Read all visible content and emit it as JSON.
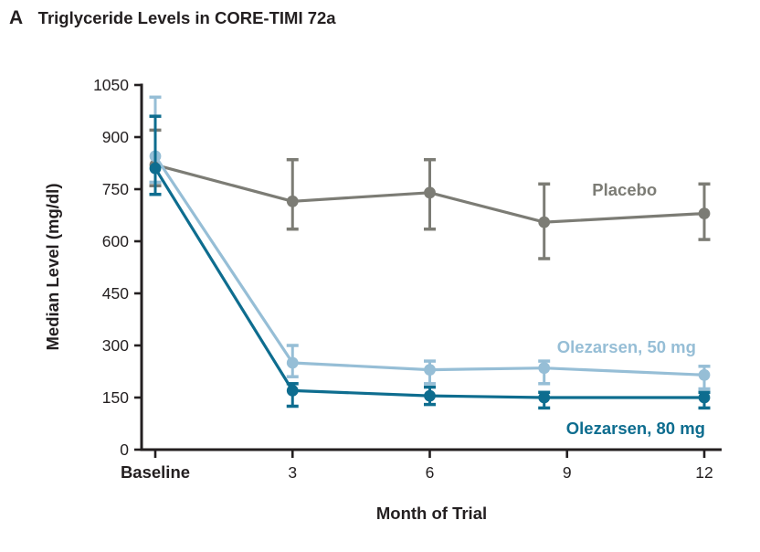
{
  "panel": {
    "label": "A",
    "title": "Triglyceride Levels in CORE-TIMI 72a"
  },
  "chart_data": {
    "type": "line",
    "title": "Triglyceride Levels in CORE-TIMI 72a",
    "xlabel": "Month of Trial",
    "ylabel": "Median Level (mg/dl)",
    "ylim": [
      0,
      1050
    ],
    "y_ticks": [
      0,
      150,
      300,
      450,
      600,
      750,
      900,
      1050
    ],
    "x_ticks": [
      {
        "pos": 0,
        "label": "Baseline",
        "bold": true
      },
      {
        "pos": 3,
        "label": "3",
        "bold": false
      },
      {
        "pos": 6,
        "label": "6",
        "bold": false
      },
      {
        "pos": 9,
        "label": "9",
        "bold": false
      },
      {
        "pos": 12,
        "label": "12",
        "bold": false
      }
    ],
    "x": [
      0,
      3,
      6,
      8.5,
      12
    ],
    "grid": false,
    "legend_position": "inline-labels",
    "axis_color": "#231f20",
    "series": [
      {
        "name": "Placebo",
        "color": "#7c7c75",
        "values": [
          820,
          715,
          740,
          655,
          680
        ],
        "err_low": [
          760,
          635,
          635,
          550,
          605
        ],
        "err_high": [
          920,
          835,
          835,
          765,
          765
        ],
        "label": "Placebo",
        "label_pos": {
          "x": 9.55,
          "y": 748
        },
        "label_anchor": "start"
      },
      {
        "name": "Olezarsen, 50 mg",
        "color": "#96bed6",
        "values": [
          845,
          250,
          230,
          235,
          215
        ],
        "err_low": [
          770,
          210,
          190,
          190,
          175
        ],
        "err_high": [
          1015,
          300,
          255,
          255,
          240
        ],
        "label": "Olezarsen, 50 mg",
        "label_pos": {
          "x": 10.3,
          "y": 295
        },
        "label_anchor": "middle"
      },
      {
        "name": "Olezarsen, 80 mg",
        "color": "#0e6d8f",
        "values": [
          810,
          170,
          155,
          150,
          150
        ],
        "err_low": [
          735,
          125,
          130,
          120,
          120
        ],
        "err_high": [
          960,
          190,
          180,
          165,
          165
        ],
        "label": "Olezarsen, 80 mg",
        "label_pos": {
          "x": 10.5,
          "y": 60
        },
        "label_anchor": "middle"
      }
    ]
  }
}
